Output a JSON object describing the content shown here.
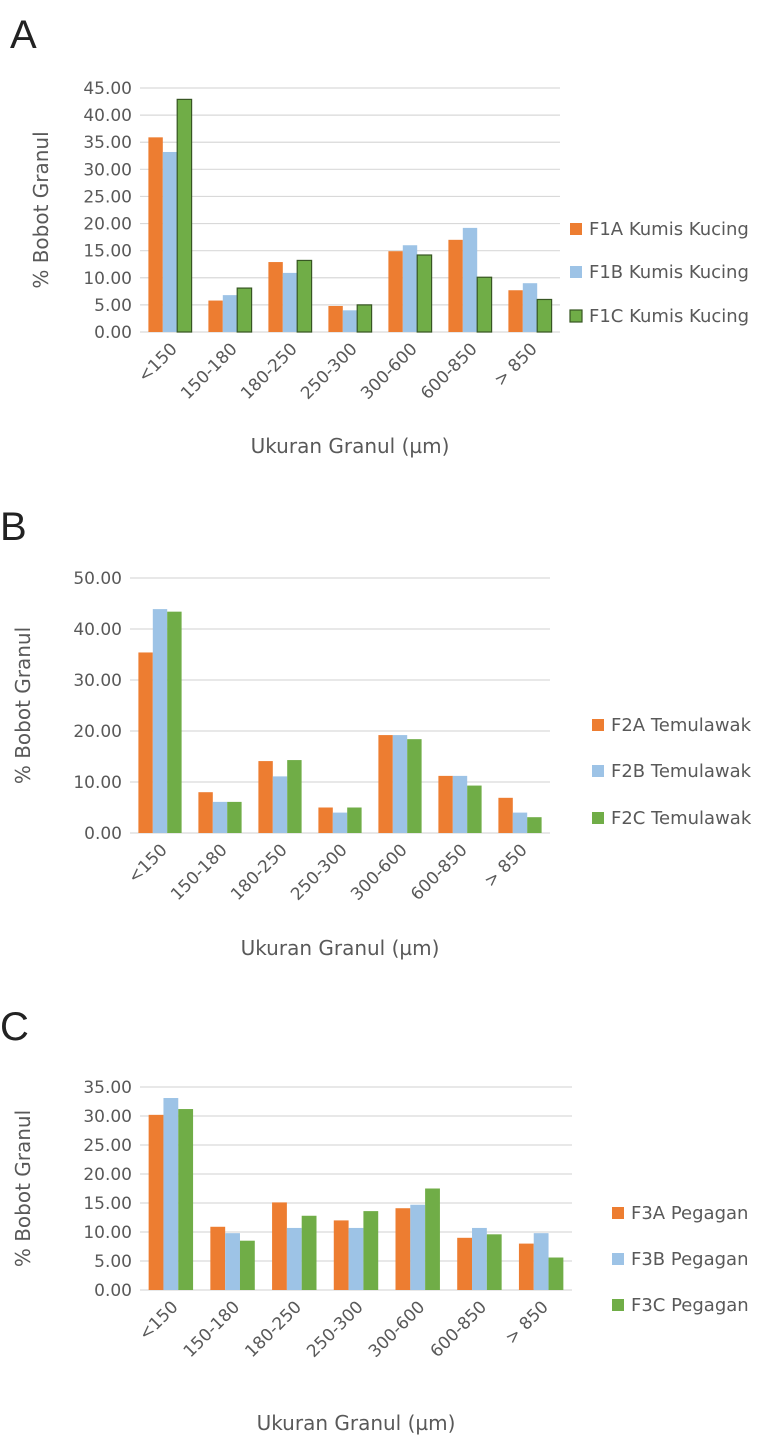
{
  "chart_data": [
    {
      "type": "bar",
      "panel_label": "A",
      "categories": [
        "<150",
        "150-180",
        "180-250",
        "250-300",
        "300-600",
        "600-850",
        "> 850"
      ],
      "xlabel": "Ukuran Granul (µm)",
      "ylabel": "% Bobot Granul",
      "ylim": [
        0,
        45
      ],
      "yticks": [
        "0.00",
        "5.00",
        "10.00",
        "15.00",
        "20.00",
        "25.00",
        "30.00",
        "35.00",
        "40.00",
        "45.00"
      ],
      "grid": true,
      "legend_position": "right",
      "series": [
        {
          "name": "F1A Kumis Kucing",
          "color": "#ed7d31",
          "values": [
            35.9,
            5.8,
            12.9,
            4.8,
            14.9,
            17.0,
            7.7
          ]
        },
        {
          "name": "F1B Kumis Kucing",
          "color": "#9dc3e6",
          "values": [
            33.2,
            6.8,
            10.9,
            4.0,
            16.0,
            19.2,
            9.0
          ]
        },
        {
          "name": "F1C Kumis Kucing",
          "color": "#70ad47",
          "outline": "#375623",
          "values": [
            42.9,
            8.1,
            13.2,
            5.0,
            14.2,
            10.1,
            6.0
          ]
        }
      ]
    },
    {
      "type": "bar",
      "panel_label": "B",
      "categories": [
        "<150",
        "150-180",
        "180-250",
        "250-300",
        "300-600",
        "600-850",
        "> 850"
      ],
      "xlabel": "Ukuran Granul (µm)",
      "ylabel": "% Bobot Granul",
      "ylim": [
        0,
        50
      ],
      "yticks": [
        "0.00",
        "10.00",
        "20.00",
        "30.00",
        "40.00",
        "50.00"
      ],
      "grid": true,
      "legend_position": "right",
      "series": [
        {
          "name": "F2A Temulawak",
          "color": "#ed7d31",
          "values": [
            35.4,
            8.0,
            14.1,
            5.0,
            19.2,
            11.2,
            6.9
          ]
        },
        {
          "name": "F2B Temulawak",
          "color": "#9dc3e6",
          "values": [
            43.9,
            6.1,
            11.1,
            4.0,
            19.2,
            11.2,
            4.0
          ]
        },
        {
          "name": "F2C Temulawak",
          "color": "#70ad47",
          "values": [
            43.4,
            6.1,
            14.3,
            5.0,
            18.4,
            9.3,
            3.1
          ]
        }
      ]
    },
    {
      "type": "bar",
      "panel_label": "C",
      "categories": [
        "<150",
        "150-180",
        "180-250",
        "250-300",
        "300-600",
        "600-850",
        "> 850"
      ],
      "xlabel": "Ukuran Granul (µm)",
      "ylabel": "% Bobot Granul",
      "ylim": [
        0,
        35
      ],
      "yticks": [
        "0.00",
        "5.00",
        "10.00",
        "15.00",
        "20.00",
        "25.00",
        "30.00",
        "35.00"
      ],
      "grid": true,
      "legend_position": "right",
      "series": [
        {
          "name": "F3A Pegagan",
          "color": "#ed7d31",
          "values": [
            30.2,
            10.9,
            15.1,
            12.0,
            14.1,
            9.0,
            8.0
          ]
        },
        {
          "name": "F3B Pegagan",
          "color": "#9dc3e6",
          "values": [
            33.1,
            9.8,
            10.7,
            10.7,
            14.7,
            10.7,
            9.8
          ]
        },
        {
          "name": "F3C Pegagan",
          "color": "#70ad47",
          "values": [
            31.2,
            8.5,
            12.8,
            13.6,
            17.5,
            9.6,
            5.6
          ]
        }
      ]
    }
  ]
}
